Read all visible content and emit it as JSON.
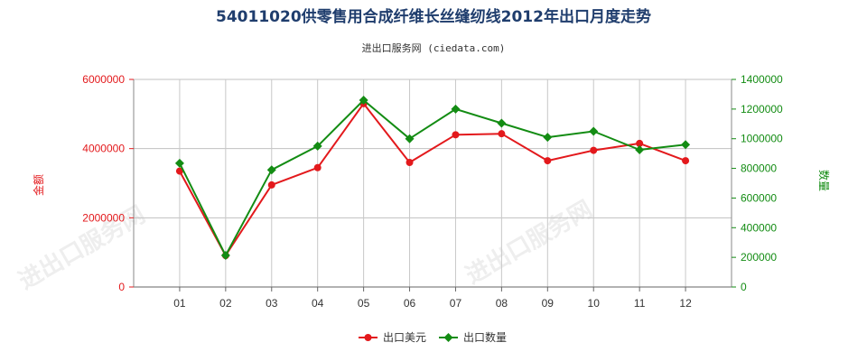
{
  "title": "54011020供零售用合成纤维长丝缝纫线2012年出口月度走势",
  "subtitle": "进出口服务网 (ciedata.com)",
  "watermark": "进出口服务网",
  "chart_data": {
    "type": "line",
    "categories": [
      "01",
      "02",
      "03",
      "04",
      "05",
      "06",
      "07",
      "08",
      "09",
      "10",
      "11",
      "12"
    ],
    "series": [
      {
        "name": "出口美元",
        "axis": "left",
        "color": "#e3191c",
        "marker": "circle",
        "values": [
          3350000,
          910000,
          2950000,
          3450000,
          5300000,
          3600000,
          4400000,
          4430000,
          3650000,
          3950000,
          4150000,
          3650000
        ]
      },
      {
        "name": "出口数量",
        "axis": "right",
        "color": "#138c13",
        "marker": "diamond",
        "values": [
          835000,
          213000,
          790000,
          950000,
          1260000,
          1000000,
          1200000,
          1105000,
          1010000,
          1050000,
          925000,
          960000
        ]
      }
    ],
    "y_left": {
      "label": "金额",
      "ylim": [
        0,
        6000000
      ],
      "ticks": [
        "0",
        "2000000",
        "4000000",
        "6000000"
      ],
      "color": "#e3191c"
    },
    "y_right": {
      "label": "数量",
      "ylim": [
        0,
        1400000
      ],
      "ticks": [
        "0",
        "200000",
        "400000",
        "600000",
        "800000",
        "1000000",
        "1200000",
        "1400000"
      ],
      "color": "#138c13"
    },
    "grid": true,
    "legend": "bottom-center"
  }
}
